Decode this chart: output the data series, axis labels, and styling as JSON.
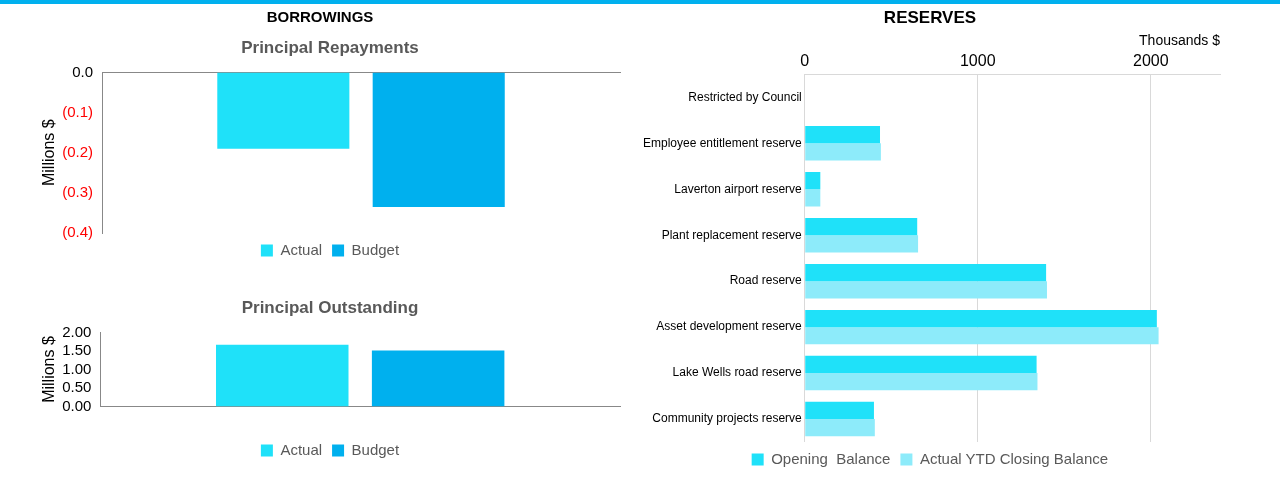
{
  "chart_data": [
    {
      "type": "bar",
      "annotations": [
        "BORROWINGS"
      ],
      "title": "Principal Repayments",
      "ylabel": "Millions $",
      "categories": [
        null
      ],
      "series": [
        {
          "name": "Actual",
          "color": "#1fe1f9",
          "values": [
            -0.19
          ]
        },
        {
          "name": "Budget",
          "color": "#00b0ee",
          "values": [
            -0.335
          ]
        }
      ],
      "ylim": [
        -0.4,
        0
      ],
      "yticks": [
        {
          "value": 0,
          "label": "0.0"
        },
        {
          "value": -0.1,
          "label": "(0.1)"
        },
        {
          "value": -0.2,
          "label": "(0.2)"
        },
        {
          "value": -0.3,
          "label": "(0.3)"
        },
        {
          "value": -0.4,
          "label": "(0.4)"
        }
      ],
      "grid": false,
      "legend": "bottom"
    },
    {
      "type": "bar",
      "title": "Principal Outstanding",
      "ylabel": "Millions $",
      "categories": [
        null
      ],
      "series": [
        {
          "name": "Actual",
          "color": "#1fe1f9",
          "values": [
            1.67
          ]
        },
        {
          "name": "Budget",
          "color": "#00b0ee",
          "values": [
            1.51
          ]
        }
      ],
      "ylim": [
        0,
        2
      ],
      "yticks": [
        {
          "value": 0,
          "label": "0.00"
        },
        {
          "value": 0.5,
          "label": "0.50"
        },
        {
          "value": 1,
          "label": "1.00"
        },
        {
          "value": 1.5,
          "label": "1.50"
        },
        {
          "value": 2,
          "label": "2.00"
        }
      ],
      "grid": false,
      "legend": "bottom"
    },
    {
      "type": "bar",
      "title": "RESERVES",
      "orientation": "horizontal",
      "xlabel": "Thousands $",
      "categories": [
        "Restricted by Council",
        "Employee entitlement reserve",
        "Laverton airport reserve",
        "Plant replacement reserve",
        "Road reserve",
        "Asset development reserve",
        "Lake Wells road reserve",
        "Community projects reserve"
      ],
      "series": [
        {
          "name": "Opening  Balance",
          "color": "#1fe1f9",
          "values": [
            0,
            435,
            90,
            650,
            1395,
            2035,
            1340,
            400
          ]
        },
        {
          "name": "Actual YTD Closing Balance",
          "color": "#8debfa",
          "values": [
            0,
            440,
            90,
            655,
            1400,
            2045,
            1345,
            405
          ]
        }
      ],
      "xlim": [
        0,
        2400
      ],
      "xticks": [
        0,
        1000,
        2000
      ],
      "grid": "x",
      "legend": "bottom"
    }
  ]
}
